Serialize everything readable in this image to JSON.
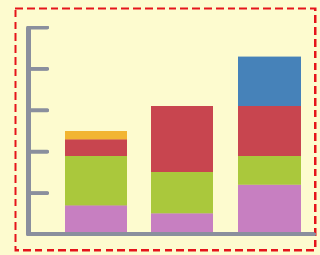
{
  "background_color": "#fdfbcf",
  "frame": {
    "border_color": "#e5141b",
    "border_style": "dashed"
  },
  "chart_data": {
    "type": "bar",
    "stacked": true,
    "title": "",
    "xlabel": "",
    "ylabel": "",
    "ylim": [
      0,
      5
    ],
    "grid": false,
    "legend": "none",
    "y_ticks": [
      0,
      1,
      2,
      3,
      4,
      5
    ],
    "categories": [
      "",
      "",
      ""
    ],
    "series": [
      {
        "color": "#c77fc1",
        "values": [
          0.7,
          0.5,
          1.2
        ]
      },
      {
        "color": "#aac83c",
        "values": [
          1.2,
          1.0,
          0.7
        ]
      },
      {
        "color": "#c8454f",
        "values": [
          0.4,
          1.6,
          1.2
        ]
      },
      {
        "color": "#f2b532",
        "values": [
          0.2,
          0.0,
          0.0
        ]
      },
      {
        "color": "#4682b9",
        "values": [
          0.0,
          0.0,
          1.2
        ]
      }
    ],
    "axis_color": "#8a8f9d"
  }
}
